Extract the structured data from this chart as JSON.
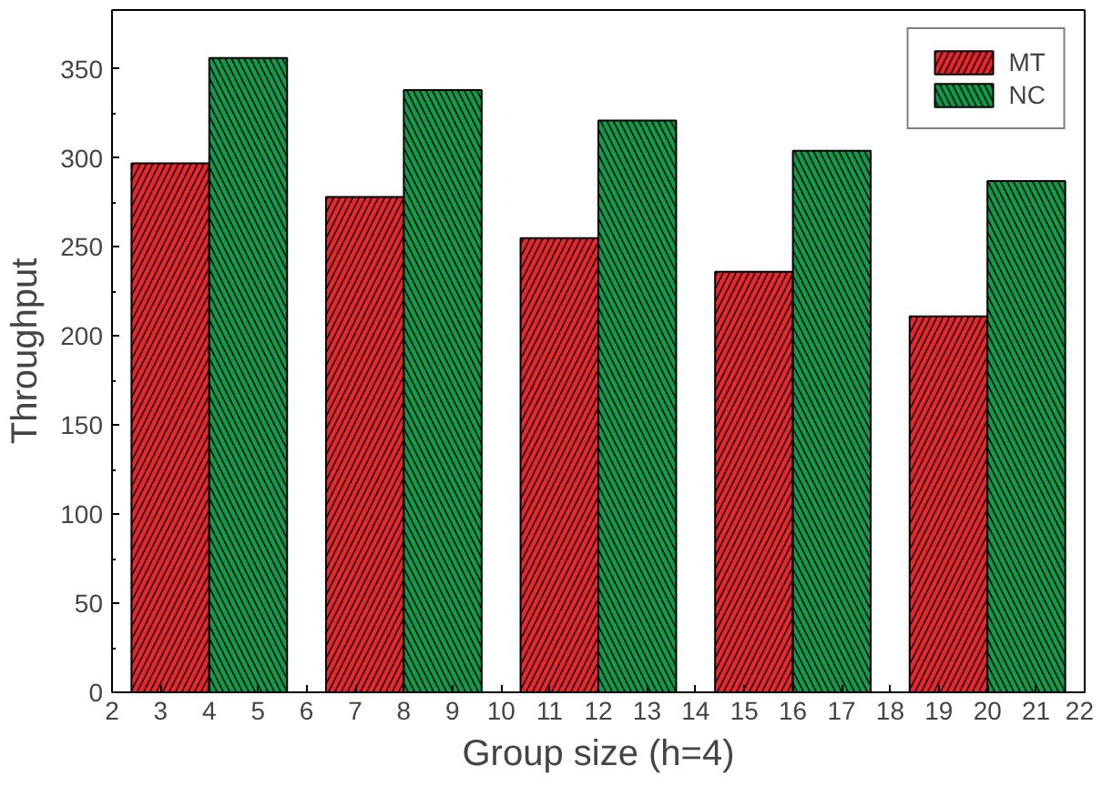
{
  "chart_data": {
    "type": "bar",
    "xlabel": "Group size (h=4)",
    "ylabel": "Throughput",
    "x": [
      4,
      8,
      12,
      16,
      20
    ],
    "series": [
      {
        "name": "MT",
        "color": "#e8262b",
        "values": [
          297,
          278,
          255,
          236,
          211
        ]
      },
      {
        "name": "NC",
        "color": "#119a48",
        "values": [
          356,
          338,
          321,
          304,
          287
        ]
      }
    ],
    "xlim": [
      2,
      22
    ],
    "xticks": [
      2,
      3,
      4,
      5,
      6,
      7,
      8,
      9,
      10,
      11,
      12,
      13,
      14,
      15,
      16,
      17,
      18,
      19,
      20,
      21,
      22
    ],
    "ylim": [
      0,
      383
    ],
    "yticks": [
      0,
      50,
      100,
      150,
      200,
      250,
      300,
      350
    ],
    "grid": false,
    "legend": "top right"
  }
}
